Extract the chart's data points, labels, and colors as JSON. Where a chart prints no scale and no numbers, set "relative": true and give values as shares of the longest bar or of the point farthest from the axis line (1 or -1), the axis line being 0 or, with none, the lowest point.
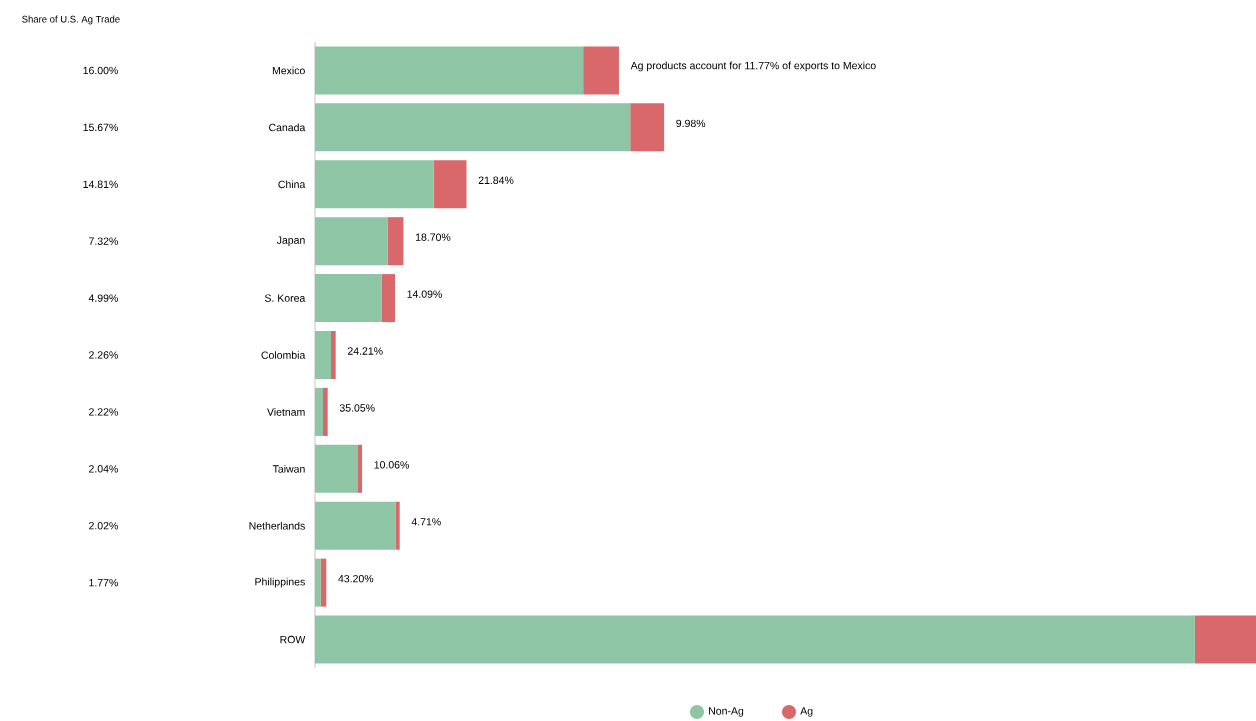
{
  "chart_data": {
    "type": "bar",
    "orientation": "horizontal",
    "stacked": true,
    "relative": true,
    "title": "Share of U.S. Ag Trade",
    "categories": [
      "Mexico",
      "Canada",
      "China",
      "Japan",
      "S. Korea",
      "Colombia",
      "Vietnam",
      "Taiwan",
      "Netherlands",
      "Philippines",
      "ROW"
    ],
    "series": [
      {
        "name": "Non-Ag",
        "color": "#8ec5a4",
        "values": [
          0.285,
          0.335,
          0.126,
          0.077,
          0.071,
          0.017,
          0.0085,
          0.045,
          0.086,
          0.006,
          0.935
        ]
      },
      {
        "name": "Ag",
        "color": "#d9686a",
        "values": [
          0.038,
          0.036,
          0.035,
          0.017,
          0.014,
          0.005,
          0.005,
          0.005,
          0.004,
          0.006,
          0.065
        ]
      }
    ],
    "annotations": [
      "16.00%",
      "15.67%",
      "14.81%",
      "7.32%",
      "4.99%",
      "2.26%",
      "2.22%",
      "2.04%",
      "2.02%",
      "1.77%",
      {
        "text": "Ag products account for 11.77% of exports to Mexico",
        "x": 0.323,
        "y": "Mexico"
      },
      {
        "text": "9.98%",
        "x": 0.371,
        "y": "Canada"
      },
      {
        "text": "21.84%",
        "x": 0.161,
        "y": "China"
      },
      {
        "text": "18.70%",
        "x": 0.094,
        "y": "Japan"
      },
      {
        "text": "14.09%",
        "x": 0.085,
        "y": "S. Korea"
      },
      {
        "text": "24.21%",
        "x": 0.022,
        "y": "Colombia"
      },
      {
        "text": "35.05%",
        "x": 0.0135,
        "y": "Vietnam"
      },
      {
        "text": "10.06%",
        "x": 0.05,
        "y": "Taiwan"
      },
      {
        "text": "4.71%",
        "x": 0.09,
        "y": "Netherlands"
      },
      {
        "text": "43.20%",
        "x": 0.012,
        "y": "Philippines"
      }
    ],
    "legend": "bottom",
    "grid": false
  }
}
